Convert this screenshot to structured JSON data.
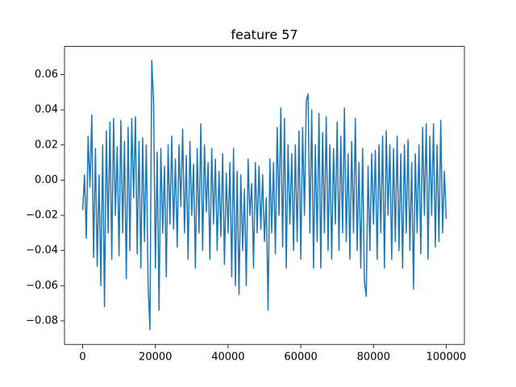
{
  "chart_data": {
    "type": "line",
    "title": "feature 57",
    "x": [
      0,
      500,
      1000,
      1500,
      2000,
      2500,
      3000,
      3500,
      4000,
      4500,
      5000,
      5500,
      6000,
      6500,
      7000,
      7500,
      8000,
      8500,
      9000,
      9500,
      10000,
      10500,
      11000,
      11500,
      12000,
      12500,
      13000,
      13500,
      14000,
      14500,
      15000,
      15500,
      16000,
      16500,
      17000,
      17500,
      18000,
      18500,
      19000,
      19500,
      20000,
      20500,
      21000,
      21500,
      22000,
      22500,
      23000,
      23500,
      24000,
      24500,
      25000,
      25500,
      26000,
      26500,
      27000,
      27500,
      28000,
      28500,
      29000,
      29500,
      30000,
      30500,
      31000,
      31500,
      32000,
      32500,
      33000,
      33500,
      34000,
      34500,
      35000,
      35500,
      36000,
      36500,
      37000,
      37500,
      38000,
      38500,
      39000,
      39500,
      40000,
      40500,
      41000,
      41500,
      42000,
      42500,
      43000,
      43500,
      44000,
      44500,
      45000,
      45500,
      46000,
      46500,
      47000,
      47500,
      48000,
      48500,
      49000,
      49500,
      50000,
      50500,
      51000,
      51500,
      52000,
      52500,
      53000,
      53500,
      54000,
      54500,
      55000,
      55500,
      56000,
      56500,
      57000,
      57500,
      58000,
      58500,
      59000,
      59500,
      60000,
      60500,
      61000,
      61500,
      62000,
      62500,
      63000,
      63500,
      64000,
      64500,
      65000,
      65500,
      66000,
      66500,
      67000,
      67500,
      68000,
      68500,
      69000,
      69500,
      70000,
      70500,
      71000,
      71500,
      72000,
      72500,
      73000,
      73500,
      74000,
      74500,
      75000,
      75500,
      76000,
      76500,
      77000,
      77500,
      78000,
      78500,
      79000,
      79500,
      80000,
      80500,
      81000,
      81500,
      82000,
      82500,
      83000,
      83500,
      84000,
      84500,
      85000,
      85500,
      86000,
      86500,
      87000,
      87500,
      88000,
      88500,
      89000,
      89500,
      90000,
      90500,
      91000,
      91500,
      92000,
      92500,
      93000,
      93500,
      94000,
      94500,
      95000,
      95500,
      96000,
      96500,
      97000,
      97500,
      98000,
      98500,
      99000,
      99500,
      100000
    ],
    "series": [
      {
        "color": "#1f77b4",
        "values": [
          -0.017,
          0.003,
          -0.033,
          0.025,
          -0.004,
          0.037,
          -0.044,
          0.018,
          -0.049,
          0.003,
          -0.06,
          0.02,
          -0.072,
          0.028,
          -0.03,
          0.033,
          -0.045,
          0.035,
          -0.02,
          0.019,
          -0.043,
          0.034,
          -0.03,
          0.022,
          -0.056,
          0.03,
          -0.04,
          0.035,
          -0.01,
          0.036,
          -0.042,
          0.022,
          -0.05,
          0.024,
          -0.035,
          0.02,
          -0.06,
          -0.085,
          0.068,
          0.045,
          -0.05,
          0.016,
          -0.074,
          0.018,
          -0.03,
          0.008,
          -0.055,
          0.02,
          -0.025,
          0.025,
          -0.028,
          0.012,
          -0.038,
          0.02,
          -0.015,
          0.029,
          -0.03,
          0.014,
          -0.045,
          0.022,
          -0.02,
          0.009,
          -0.05,
          0.018,
          -0.03,
          0.032,
          -0.04,
          0.02,
          -0.018,
          0.01,
          -0.045,
          0.018,
          -0.025,
          0.012,
          -0.04,
          0.005,
          -0.032,
          0.015,
          -0.048,
          0.004,
          -0.03,
          0.01,
          -0.055,
          0.018,
          -0.06,
          0.005,
          -0.065,
          0.003,
          -0.04,
          -0.005,
          -0.06,
          0.012,
          -0.02,
          -0.002,
          -0.05,
          0.01,
          -0.03,
          0.008,
          -0.028,
          0.003,
          -0.035,
          -0.01,
          -0.074,
          0.012,
          -0.03,
          0.01,
          -0.042,
          0.03,
          -0.02,
          0.041,
          -0.038,
          0.035,
          -0.05,
          0.02,
          -0.025,
          0.015,
          -0.04,
          0.02,
          -0.035,
          0.028,
          -0.045,
          0.03,
          -0.02,
          0.045,
          0.049,
          -0.03,
          0.04,
          -0.05,
          0.02,
          -0.035,
          0.038,
          -0.05,
          0.027,
          -0.03,
          0.036,
          -0.04,
          0.02,
          -0.045,
          0.018,
          -0.025,
          0.033,
          -0.04,
          0.025,
          -0.03,
          0.041,
          -0.035,
          0.015,
          -0.045,
          0.022,
          -0.03,
          0.035,
          -0.04,
          0.01,
          -0.05,
          0.018,
          -0.058,
          -0.066,
          0.008,
          -0.04,
          0.015,
          -0.025,
          0.017,
          -0.045,
          0.02,
          -0.03,
          0.025,
          -0.05,
          0.028,
          -0.02,
          0.02,
          -0.045,
          0.018,
          -0.035,
          0.025,
          -0.04,
          0.015,
          -0.05,
          0.02,
          -0.03,
          0.023,
          -0.04,
          0.01,
          -0.062,
          0.015,
          -0.03,
          0.02,
          -0.042,
          0.03,
          -0.02,
          0.032,
          -0.045,
          0.025,
          -0.02,
          0.032,
          -0.038,
          0.02,
          -0.035,
          0.034,
          -0.03,
          0.005,
          -0.022
        ]
      }
    ],
    "xlim": [
      -5000,
      105000
    ],
    "ylim": [
      -0.0934,
      0.076
    ],
    "xticks": [
      0,
      20000,
      40000,
      60000,
      80000,
      100000
    ],
    "yticks": [
      {
        "value": -0.08,
        "label": "−0.08"
      },
      {
        "value": -0.06,
        "label": "−0.06"
      },
      {
        "value": -0.04,
        "label": "−0.04"
      },
      {
        "value": -0.02,
        "label": "−0.02"
      },
      {
        "value": 0,
        "label": "0.00"
      },
      0.02,
      0.04,
      0.06
    ]
  }
}
